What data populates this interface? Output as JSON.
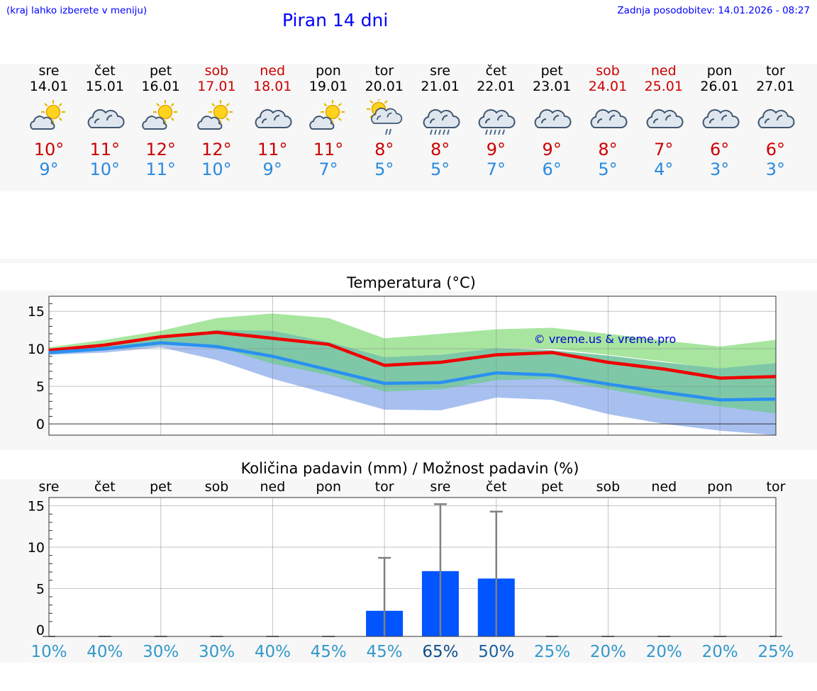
{
  "header": {
    "menu_hint": "(kraj lahko izberete v meniju)",
    "title": "Piran 14 dni",
    "updated": "Zadnja posodobitev: 14.01.2026 - 08:27"
  },
  "colors": {
    "title_blue": "#0000ff",
    "max_red": "#cc0000",
    "min_blue": "#2a8ae0",
    "max_line": "#ee0000",
    "min_line": "#2a90f0",
    "band_outer_green": "#a8e6a0",
    "band_inner_teal": "#7ec8a8",
    "band_outer_blue": "#a8c0f0",
    "bar_blue": "#0055ff"
  },
  "days": [
    {
      "name": "sre",
      "date": "14.01",
      "weekend": false,
      "icon": "partly-cloudy-icon",
      "max": "10°",
      "min": "9°"
    },
    {
      "name": "čet",
      "date": "15.01",
      "weekend": false,
      "icon": "cloudy-icon",
      "max": "11°",
      "min": "10°"
    },
    {
      "name": "pet",
      "date": "16.01",
      "weekend": false,
      "icon": "partly-cloudy-icon",
      "max": "12°",
      "min": "11°"
    },
    {
      "name": "sob",
      "date": "17.01",
      "weekend": true,
      "icon": "partly-cloudy-icon",
      "max": "12°",
      "min": "10°"
    },
    {
      "name": "ned",
      "date": "18.01",
      "weekend": true,
      "icon": "cloudy-icon",
      "max": "11°",
      "min": "9°"
    },
    {
      "name": "pon",
      "date": "19.01",
      "weekend": false,
      "icon": "partly-cloudy-icon",
      "max": "11°",
      "min": "7°"
    },
    {
      "name": "tor",
      "date": "20.01",
      "weekend": false,
      "icon": "sun-showers-icon",
      "max": "8°",
      "min": "5°"
    },
    {
      "name": "sre",
      "date": "21.01",
      "weekend": false,
      "icon": "rain-cloud-icon",
      "max": "8°",
      "min": "5°"
    },
    {
      "name": "čet",
      "date": "22.01",
      "weekend": false,
      "icon": "rain-cloud-icon",
      "max": "9°",
      "min": "7°"
    },
    {
      "name": "pet",
      "date": "23.01",
      "weekend": false,
      "icon": "cloudy-icon",
      "max": "9°",
      "min": "6°"
    },
    {
      "name": "sob",
      "date": "24.01",
      "weekend": true,
      "icon": "cloudy-icon",
      "max": "8°",
      "min": "5°"
    },
    {
      "name": "ned",
      "date": "25.01",
      "weekend": true,
      "icon": "cloudy-icon",
      "max": "7°",
      "min": "4°"
    },
    {
      "name": "pon",
      "date": "26.01",
      "weekend": false,
      "icon": "cloudy-icon",
      "max": "6°",
      "min": "3°"
    },
    {
      "name": "tor",
      "date": "27.01",
      "weekend": false,
      "icon": "cloudy-icon",
      "max": "6°",
      "min": "3°"
    }
  ],
  "chart_data": [
    {
      "type": "line",
      "title": "Temperatura (°C)",
      "watermark": "© vreme.us & vreme.pro",
      "x_count": 14,
      "ylim": [
        -1.5,
        17
      ],
      "yticks": [
        0,
        5,
        10,
        15
      ],
      "grid": true,
      "series": [
        {
          "name": "max",
          "values": [
            9.8,
            10.5,
            11.6,
            12.2,
            11.4,
            10.6,
            7.8,
            8.2,
            9.2,
            9.5,
            8.2,
            7.3,
            6.1,
            6.3
          ]
        },
        {
          "name": "min",
          "values": [
            9.5,
            10.0,
            10.8,
            10.3,
            9.0,
            7.2,
            5.4,
            5.5,
            6.8,
            6.5,
            5.3,
            4.2,
            3.2,
            3.3
          ]
        }
      ],
      "bands": [
        {
          "name": "max-range",
          "lower": [
            9.6,
            10.1,
            10.9,
            11.5,
            12.3,
            10.2,
            8.8,
            9.2,
            10.1,
            10.0,
            9.2,
            8.3,
            7.3,
            8.1
          ],
          "upper": [
            10.2,
            11.2,
            12.4,
            14.1,
            14.7,
            14.1,
            11.4,
            12.0,
            12.6,
            12.8,
            12.0,
            11.1,
            10.3,
            11.2
          ]
        },
        {
          "name": "min-range",
          "lower": [
            9.2,
            9.5,
            10.2,
            8.5,
            6.0,
            4.0,
            1.9,
            1.8,
            3.5,
            3.2,
            1.3,
            0.0,
            -0.9,
            -1.5
          ],
          "upper": [
            9.9,
            10.3,
            11.4,
            12.3,
            12.4,
            10.8,
            8.0,
            8.2,
            9.3,
            9.0,
            7.9,
            6.8,
            5.6,
            6.2
          ]
        },
        {
          "name": "overlap",
          "lower": [
            9.4,
            9.8,
            10.5,
            10.3,
            8.0,
            6.5,
            4.3,
            4.6,
            5.8,
            6.0,
            4.6,
            3.3,
            2.3,
            1.4
          ],
          "upper": [
            9.8,
            10.5,
            11.5,
            12.5,
            12.4,
            10.9,
            8.9,
            9.2,
            10.1,
            9.8,
            9.1,
            8.2,
            7.4,
            8.1
          ]
        }
      ]
    },
    {
      "type": "bar",
      "title": "Količina padavin (mm) / Možnost padavin (%)",
      "categories": [
        "sre",
        "čet",
        "pet",
        "sob",
        "ned",
        "pon",
        "tor",
        "sre",
        "čet",
        "pet",
        "sob",
        "ned",
        "pon",
        "tor"
      ],
      "values": [
        0,
        0,
        0,
        0,
        0,
        0,
        2.3,
        7.1,
        6.2,
        0,
        0,
        0,
        0,
        0
      ],
      "error_max": [
        0,
        0,
        0,
        0,
        0,
        0,
        8.7,
        15.2,
        14.3,
        0,
        0,
        0,
        0,
        0
      ],
      "probability": [
        "10%",
        "40%",
        "30%",
        "30%",
        "40%",
        "45%",
        "45%",
        "65%",
        "50%",
        "25%",
        "20%",
        "20%",
        "20%",
        "25%"
      ],
      "prob_values": [
        10,
        40,
        30,
        30,
        40,
        45,
        45,
        65,
        50,
        25,
        20,
        20,
        20,
        25
      ],
      "ylim": [
        -0.8,
        16
      ],
      "yticks": [
        0,
        5,
        10,
        15
      ],
      "grid": true
    }
  ]
}
